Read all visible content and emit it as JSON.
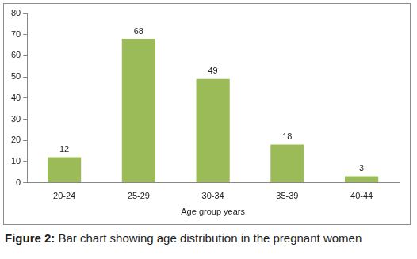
{
  "chart_data": {
    "type": "bar",
    "title": "Figure 2: Bar chart showing age distribution in the pregnant women",
    "x_label": "Age group years",
    "categories": [
      "20-24",
      "25-29",
      "30-34",
      "35-39",
      "40-44"
    ],
    "values": [
      12,
      68,
      49,
      18,
      3
    ],
    "color": "#9bbb59",
    "ylim": [
      0,
      80
    ],
    "yticks": [
      0,
      10,
      20,
      30,
      40,
      50,
      60,
      70,
      80
    ],
    "grid": false,
    "data_labels": true
  }
}
